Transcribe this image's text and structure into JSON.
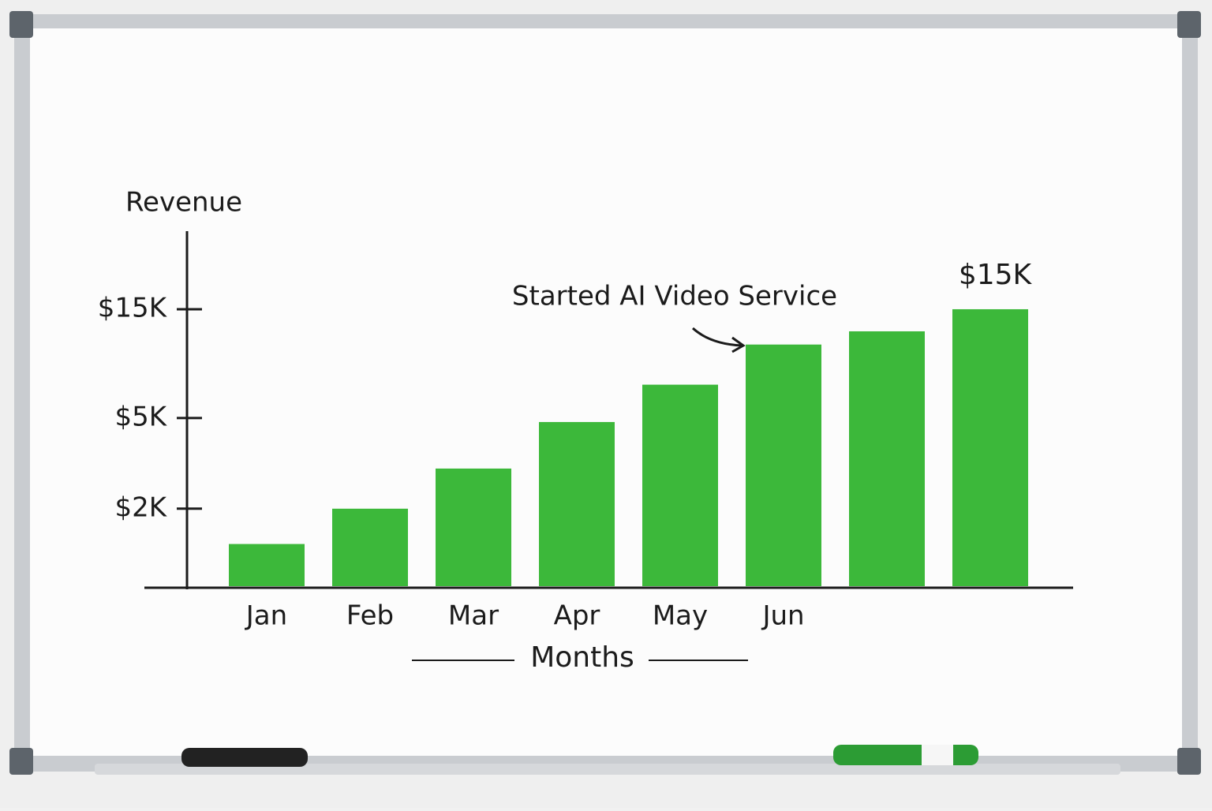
{
  "chart_data": {
    "type": "bar",
    "y_axis_label": "Revenue",
    "x_axis_label": "Months",
    "annotation": "Started AI Video Service",
    "categories": [
      "Jan",
      "Feb",
      "Mar",
      "Apr",
      "May",
      "Jun",
      null,
      null
    ],
    "values": [
      1400,
      2000,
      3000,
      4800,
      7000,
      10500,
      12000,
      15000
    ],
    "value_labels": [
      null,
      null,
      null,
      null,
      null,
      null,
      null,
      "$15K"
    ],
    "color": "#3cb83a",
    "log_scale": true,
    "ylim": [
      900,
      30000
    ],
    "yticks": [
      {
        "value": 2000,
        "label": "$2K"
      },
      {
        "value": 5000,
        "label": "$5K"
      },
      {
        "value": 15000,
        "label": "$15K"
      }
    ]
  }
}
